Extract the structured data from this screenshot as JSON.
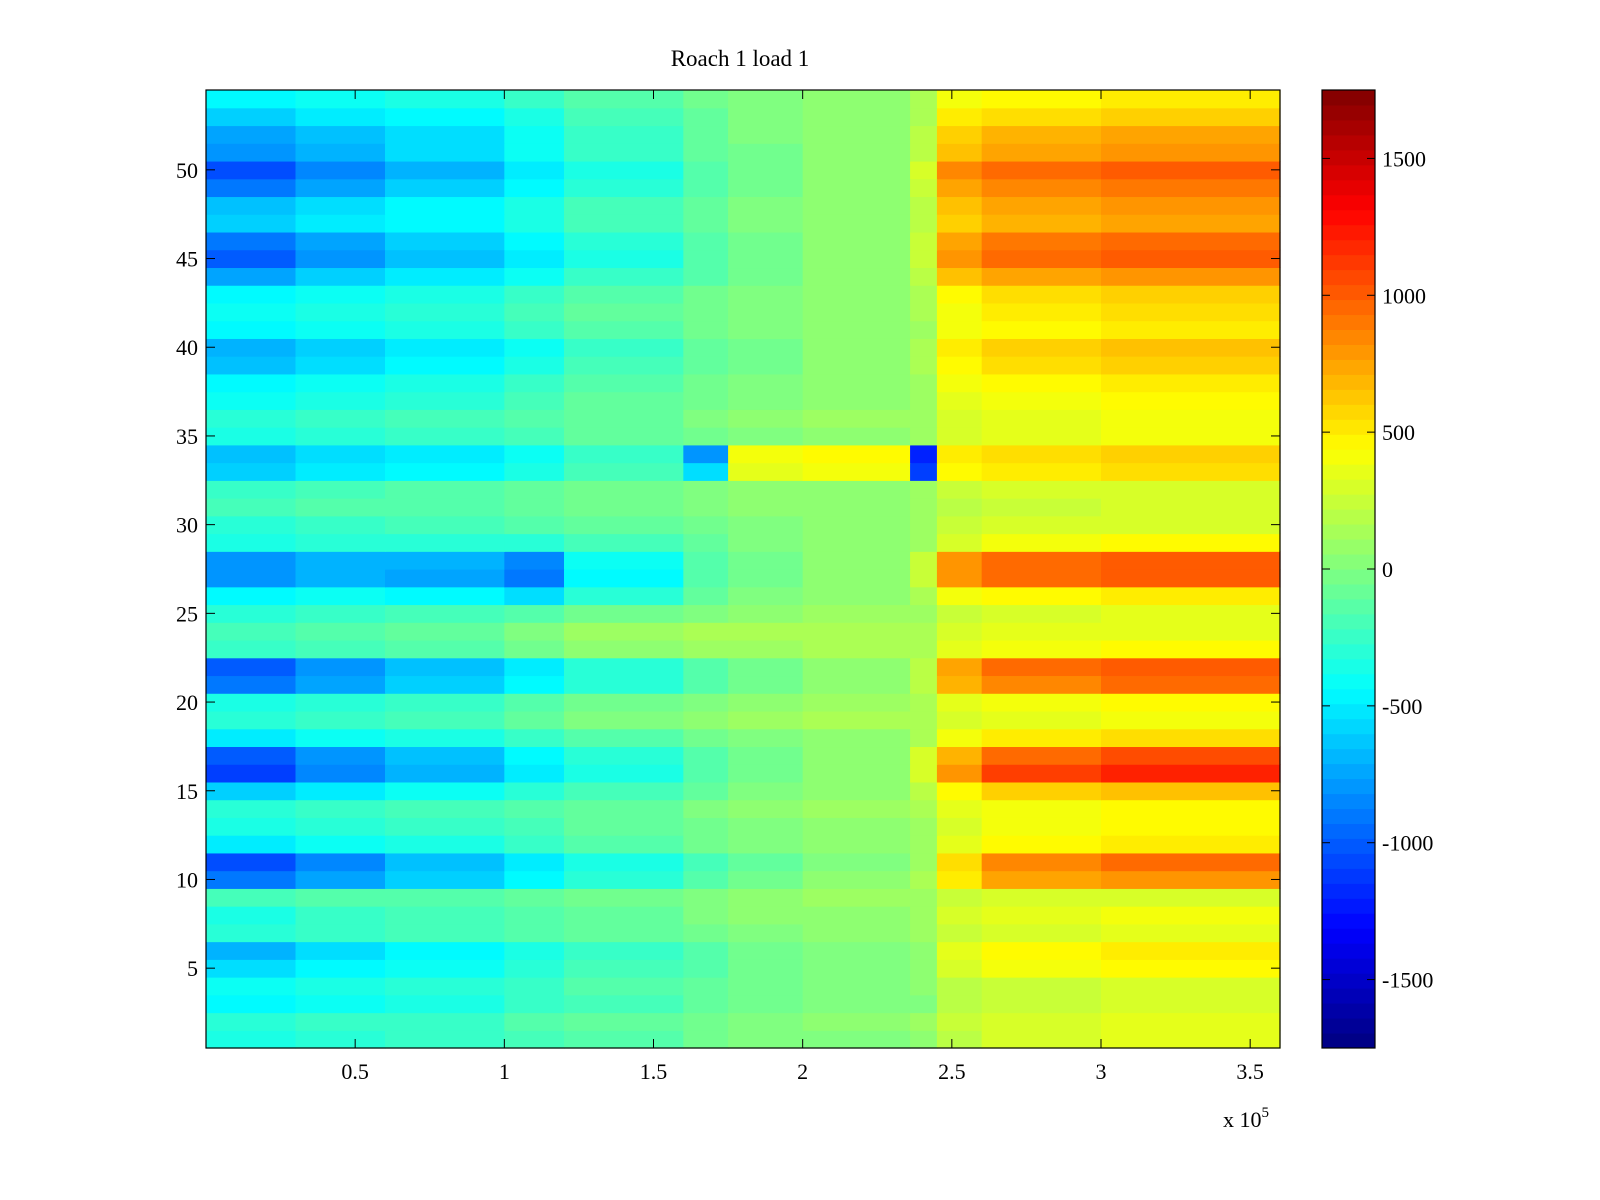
{
  "chart_data": {
    "type": "heatmap",
    "title": "Roach 1 load 1",
    "xlabel": "",
    "ylabel": "",
    "x_exponent_label": "x 10",
    "x_exponent_power": "5",
    "xlim": [
      0,
      360000
    ],
    "ylim": [
      0.5,
      54.5
    ],
    "x_ticks": [
      {
        "value": 50000,
        "label": "0.5"
      },
      {
        "value": 100000,
        "label": "1"
      },
      {
        "value": 150000,
        "label": "1.5"
      },
      {
        "value": 200000,
        "label": "2"
      },
      {
        "value": 250000,
        "label": "2.5"
      },
      {
        "value": 300000,
        "label": "3"
      },
      {
        "value": 350000,
        "label": "3.5"
      }
    ],
    "y_ticks": [
      {
        "value": 5,
        "label": "5"
      },
      {
        "value": 10,
        "label": "10"
      },
      {
        "value": 15,
        "label": "15"
      },
      {
        "value": 20,
        "label": "20"
      },
      {
        "value": 25,
        "label": "25"
      },
      {
        "value": 30,
        "label": "30"
      },
      {
        "value": 35,
        "label": "35"
      },
      {
        "value": 40,
        "label": "40"
      },
      {
        "value": 45,
        "label": "45"
      },
      {
        "value": 50,
        "label": "50"
      }
    ],
    "colorbar": {
      "colormap": "jet",
      "clim": [
        -1750,
        1750
      ],
      "ticks": [
        {
          "value": 1500,
          "label": "1500"
        },
        {
          "value": 1000,
          "label": "1000"
        },
        {
          "value": 500,
          "label": "500"
        },
        {
          "value": 0,
          "label": "0"
        },
        {
          "value": -500,
          "label": "-500"
        },
        {
          "value": -1000,
          "label": "-1000"
        },
        {
          "value": -1500,
          "label": "-1500"
        }
      ]
    },
    "x_segments": [
      0,
      30000,
      60000,
      100000,
      120000,
      160000,
      175000,
      200000,
      236000,
      245000,
      260000,
      300000,
      360000
    ],
    "rows": [
      {
        "y": 1,
        "levels": [
          -350,
          -300,
          -250,
          -200,
          -150,
          -50,
          0,
          0,
          50,
          200,
          300,
          350
        ]
      },
      {
        "y": 2,
        "levels": [
          -300,
          -250,
          -250,
          -150,
          -100,
          -50,
          0,
          50,
          100,
          250,
          300,
          350
        ]
      },
      {
        "y": 3,
        "levels": [
          -450,
          -400,
          -350,
          -250,
          -200,
          -100,
          -50,
          0,
          0,
          200,
          250,
          300
        ]
      },
      {
        "y": 4,
        "levels": [
          -400,
          -350,
          -300,
          -250,
          -150,
          -100,
          -50,
          0,
          50,
          200,
          250,
          300
        ]
      },
      {
        "y": 5,
        "levels": [
          -550,
          -450,
          -400,
          -300,
          -200,
          -150,
          -50,
          0,
          50,
          300,
          400,
          450
        ]
      },
      {
        "y": 6,
        "levels": [
          -700,
          -550,
          -450,
          -350,
          -250,
          -150,
          -50,
          0,
          50,
          350,
          450,
          500
        ]
      },
      {
        "y": 7,
        "levels": [
          -300,
          -250,
          -200,
          -150,
          -100,
          -50,
          0,
          50,
          100,
          250,
          300,
          350
        ]
      },
      {
        "y": 8,
        "levels": [
          -350,
          -250,
          -200,
          -150,
          -100,
          0,
          50,
          50,
          100,
          300,
          350,
          400
        ]
      },
      {
        "y": 9,
        "levels": [
          -200,
          -150,
          -150,
          -100,
          -50,
          0,
          50,
          100,
          100,
          250,
          300,
          300
        ]
      },
      {
        "y": 10,
        "levels": [
          -900,
          -750,
          -600,
          -450,
          -300,
          -150,
          -50,
          50,
          150,
          500,
          750,
          800
        ]
      },
      {
        "y": 11,
        "levels": [
          -1050,
          -850,
          -650,
          -500,
          -350,
          -200,
          -100,
          0,
          100,
          550,
          850,
          950
        ]
      },
      {
        "y": 12,
        "levels": [
          -500,
          -400,
          -350,
          -250,
          -150,
          -50,
          0,
          50,
          100,
          350,
          450,
          500
        ]
      },
      {
        "y": 13,
        "levels": [
          -350,
          -300,
          -250,
          -200,
          -100,
          -50,
          0,
          50,
          100,
          300,
          400,
          450
        ]
      },
      {
        "y": 14,
        "levels": [
          -300,
          -250,
          -200,
          -150,
          -100,
          0,
          50,
          100,
          150,
          350,
          400,
          450
        ]
      },
      {
        "y": 15,
        "levels": [
          -600,
          -500,
          -400,
          -300,
          -200,
          -100,
          0,
          50,
          200,
          450,
          600,
          650
        ]
      },
      {
        "y": 16,
        "levels": [
          -1100,
          -850,
          -700,
          -500,
          -350,
          -150,
          -50,
          50,
          300,
          800,
          1100,
          1200
        ]
      },
      {
        "y": 17,
        "levels": [
          -1000,
          -800,
          -650,
          -450,
          -300,
          -150,
          -50,
          50,
          300,
          700,
          950,
          1050
        ]
      },
      {
        "y": 18,
        "levels": [
          -500,
          -400,
          -350,
          -250,
          -150,
          -50,
          0,
          50,
          150,
          400,
          500,
          550
        ]
      },
      {
        "y": 19,
        "levels": [
          -300,
          -250,
          -200,
          -100,
          0,
          50,
          100,
          150,
          150,
          300,
          350,
          400
        ]
      },
      {
        "y": 20,
        "levels": [
          -350,
          -300,
          -250,
          -150,
          -50,
          0,
          50,
          100,
          150,
          350,
          400,
          450
        ]
      },
      {
        "y": 21,
        "levels": [
          -900,
          -750,
          -600,
          -450,
          -300,
          -150,
          -50,
          50,
          200,
          700,
          850,
          950
        ]
      },
      {
        "y": 22,
        "levels": [
          -1000,
          -800,
          -650,
          -500,
          -300,
          -150,
          -50,
          50,
          200,
          750,
          950,
          1000
        ]
      },
      {
        "y": 23,
        "levels": [
          -250,
          -200,
          -150,
          -50,
          50,
          100,
          100,
          150,
          150,
          350,
          400,
          450
        ]
      },
      {
        "y": 24,
        "levels": [
          -200,
          -150,
          -100,
          0,
          100,
          150,
          150,
          150,
          150,
          300,
          350,
          350
        ]
      },
      {
        "y": 25,
        "levels": [
          -300,
          -250,
          -200,
          -150,
          -50,
          0,
          50,
          100,
          100,
          250,
          300,
          350
        ]
      },
      {
        "y": 26,
        "levels": [
          -450,
          -400,
          -450,
          -550,
          -300,
          -100,
          0,
          50,
          150,
          400,
          450,
          500
        ]
      },
      {
        "y": 27,
        "levels": [
          -800,
          -700,
          -750,
          -900,
          -450,
          -150,
          -50,
          50,
          250,
          800,
          950,
          1000
        ]
      },
      {
        "y": 28,
        "levels": [
          -800,
          -700,
          -700,
          -850,
          -400,
          -150,
          -50,
          50,
          250,
          800,
          950,
          1000
        ]
      },
      {
        "y": 29,
        "levels": [
          -350,
          -300,
          -300,
          -300,
          -200,
          -100,
          0,
          50,
          100,
          300,
          400,
          450
        ]
      },
      {
        "y": 30,
        "levels": [
          -300,
          -250,
          -200,
          -150,
          -100,
          -50,
          0,
          50,
          100,
          250,
          300,
          300
        ]
      },
      {
        "y": 31,
        "levels": [
          -200,
          -150,
          -150,
          -100,
          -50,
          0,
          50,
          50,
          100,
          200,
          250,
          300
        ]
      },
      {
        "y": 32,
        "levels": [
          -250,
          -200,
          -150,
          -100,
          -50,
          0,
          50,
          50,
          100,
          250,
          300,
          300
        ]
      },
      {
        "y": 33,
        "levels": [
          -600,
          -500,
          -450,
          -350,
          -200,
          -550,
          350,
          400,
          -1100,
          450,
          500,
          550
        ]
      },
      {
        "y": 34,
        "levels": [
          -650,
          -550,
          -500,
          -400,
          -250,
          -800,
          400,
          450,
          -1200,
          500,
          550,
          600
        ]
      },
      {
        "y": 35,
        "levels": [
          -350,
          -300,
          -250,
          -200,
          -100,
          -50,
          0,
          50,
          100,
          300,
          350,
          400
        ]
      },
      {
        "y": 36,
        "levels": [
          -300,
          -250,
          -200,
          -150,
          -100,
          0,
          50,
          100,
          100,
          300,
          350,
          400
        ]
      },
      {
        "y": 37,
        "levels": [
          -400,
          -350,
          -300,
          -200,
          -100,
          -50,
          0,
          50,
          100,
          350,
          400,
          450
        ]
      },
      {
        "y": 38,
        "levels": [
          -450,
          -400,
          -350,
          -250,
          -150,
          -50,
          0,
          50,
          100,
          400,
          450,
          500
        ]
      },
      {
        "y": 39,
        "levels": [
          -650,
          -550,
          -450,
          -350,
          -200,
          -100,
          -50,
          50,
          150,
          450,
          550,
          600
        ]
      },
      {
        "y": 40,
        "levels": [
          -700,
          -600,
          -500,
          -400,
          -250,
          -100,
          -50,
          50,
          150,
          500,
          600,
          650
        ]
      },
      {
        "y": 41,
        "levels": [
          -450,
          -400,
          -350,
          -250,
          -150,
          -50,
          0,
          50,
          100,
          400,
          450,
          500
        ]
      },
      {
        "y": 42,
        "levels": [
          -400,
          -350,
          -300,
          -200,
          -100,
          -50,
          0,
          50,
          150,
          400,
          500,
          550
        ]
      },
      {
        "y": 43,
        "levels": [
          -450,
          -400,
          -350,
          -250,
          -150,
          -50,
          0,
          50,
          150,
          450,
          550,
          600
        ]
      },
      {
        "y": 44,
        "levels": [
          -750,
          -600,
          -500,
          -400,
          -250,
          -150,
          -50,
          50,
          200,
          650,
          750,
          800
        ]
      },
      {
        "y": 45,
        "levels": [
          -1000,
          -800,
          -650,
          -500,
          -350,
          -150,
          -50,
          50,
          250,
          800,
          950,
          1000
        ]
      },
      {
        "y": 46,
        "levels": [
          -900,
          -750,
          -600,
          -450,
          -300,
          -150,
          -50,
          50,
          250,
          750,
          900,
          950
        ]
      },
      {
        "y": 47,
        "levels": [
          -600,
          -500,
          -450,
          -350,
          -200,
          -100,
          0,
          50,
          200,
          600,
          700,
          750
        ]
      },
      {
        "y": 48,
        "levels": [
          -650,
          -550,
          -450,
          -350,
          -200,
          -100,
          0,
          50,
          200,
          650,
          750,
          800
        ]
      },
      {
        "y": 49,
        "levels": [
          -900,
          -750,
          -600,
          -450,
          -300,
          -150,
          -50,
          50,
          250,
          750,
          850,
          900
        ]
      },
      {
        "y": 50,
        "levels": [
          -1050,
          -850,
          -700,
          -500,
          -350,
          -150,
          -50,
          50,
          300,
          850,
          950,
          1000
        ]
      },
      {
        "y": 51,
        "levels": [
          -800,
          -700,
          -550,
          -400,
          -250,
          -100,
          -50,
          50,
          200,
          650,
          750,
          800
        ]
      },
      {
        "y": 52,
        "levels": [
          -750,
          -650,
          -550,
          -400,
          -250,
          -100,
          0,
          50,
          200,
          600,
          700,
          750
        ]
      },
      {
        "y": 53,
        "levels": [
          -600,
          -500,
          -450,
          -350,
          -200,
          -100,
          0,
          50,
          150,
          500,
          550,
          600
        ]
      },
      {
        "y": 54,
        "levels": [
          -450,
          -400,
          -350,
          -250,
          -150,
          -50,
          0,
          50,
          150,
          400,
          450,
          500
        ]
      }
    ]
  }
}
